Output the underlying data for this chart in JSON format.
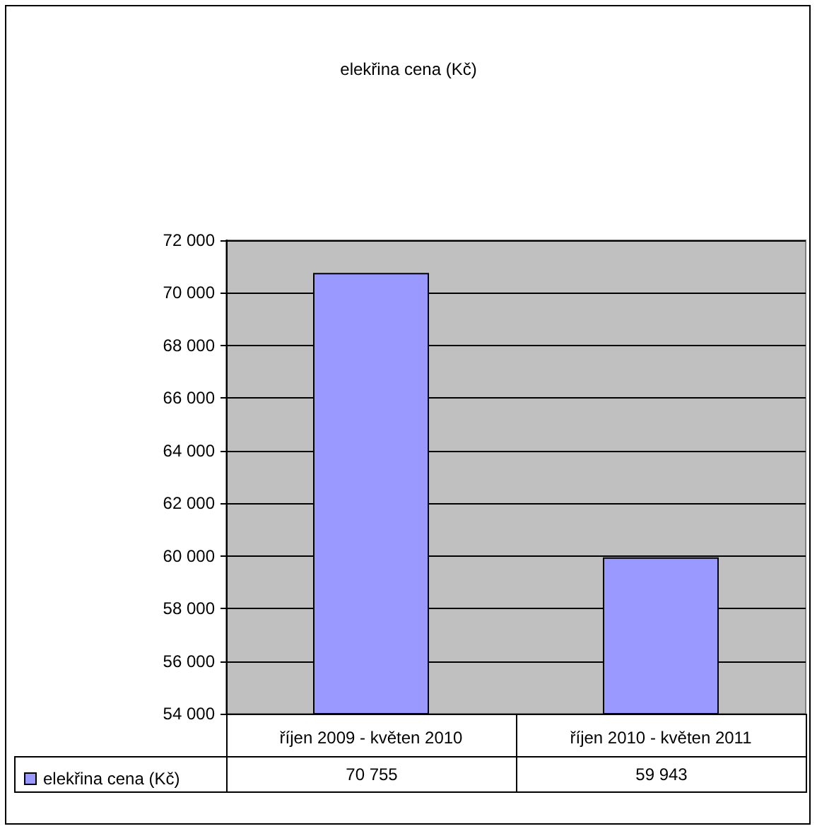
{
  "chart_data": {
    "type": "bar",
    "title": "elekřina cena (Kč)",
    "categories": [
      "říjen 2009 - květen 2010",
      "říjen 2010 - květen 2011"
    ],
    "series": [
      {
        "name": "elekřina cena (Kč)",
        "color": "#9999ff",
        "values": [
          70755,
          59943
        ],
        "value_labels": [
          "70 755",
          "59 943"
        ]
      }
    ],
    "ylim": [
      54000,
      72000
    ],
    "yticks": [
      {
        "value": 54000,
        "label": "54 000"
      },
      {
        "value": 56000,
        "label": "56 000"
      },
      {
        "value": 58000,
        "label": "58 000"
      },
      {
        "value": 60000,
        "label": "60 000"
      },
      {
        "value": 62000,
        "label": "62 000"
      },
      {
        "value": 64000,
        "label": "64 000"
      },
      {
        "value": 66000,
        "label": "66 000"
      },
      {
        "value": 68000,
        "label": "68 000"
      },
      {
        "value": 70000,
        "label": "70 000"
      },
      {
        "value": 72000,
        "label": "72 000"
      }
    ],
    "grid": "y",
    "legend": "bottom left"
  }
}
